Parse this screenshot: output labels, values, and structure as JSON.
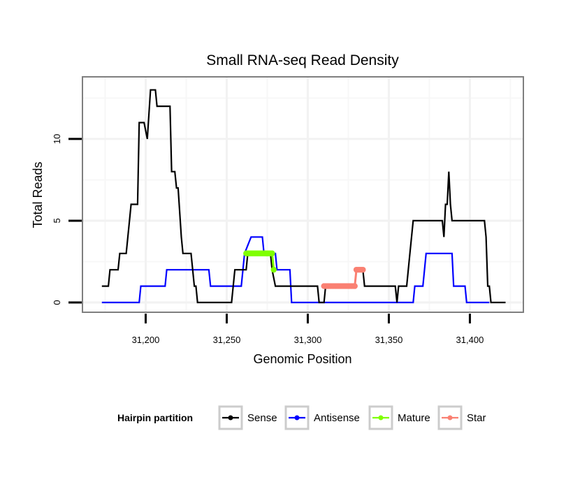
{
  "chart_data": {
    "type": "line",
    "title": "Small RNA-seq Read Density",
    "xlabel": "Genomic Position",
    "ylabel": "Total Reads",
    "xlim": [
      31161,
      31433
    ],
    "ylim": [
      -0.6,
      13.8
    ],
    "x_ticks": [
      31200,
      31250,
      31300,
      31350,
      31400
    ],
    "x_tick_labels": [
      "31,200",
      "31,250",
      "31,300",
      "31,350",
      "31,400"
    ],
    "y_ticks": [
      0,
      5,
      10
    ],
    "y_tick_labels": [
      "0",
      "5",
      "10"
    ],
    "grid": true,
    "legend": {
      "title": "Hairpin partition",
      "placement": "bottom",
      "entries": [
        {
          "name": "Sense",
          "color": "#000000"
        },
        {
          "name": "Antisense",
          "color": "#0000ff"
        },
        {
          "name": "Mature",
          "color": "#7fff00"
        },
        {
          "name": "Star",
          "color": "#fa8072"
        }
      ]
    },
    "series": [
      {
        "name": "Sense",
        "color": "#000000",
        "points": [
          [
            31173,
            1
          ],
          [
            31177,
            1
          ],
          [
            31178,
            2
          ],
          [
            31183,
            2
          ],
          [
            31184,
            3
          ],
          [
            31188,
            3
          ],
          [
            31190,
            5
          ],
          [
            31191,
            6
          ],
          [
            31195,
            6
          ],
          [
            31196,
            11
          ],
          [
            31199,
            11
          ],
          [
            31201,
            10
          ],
          [
            31203,
            13
          ],
          [
            31206,
            13
          ],
          [
            31207,
            12
          ],
          [
            31215,
            12
          ],
          [
            31216,
            8
          ],
          [
            31218,
            8
          ],
          [
            31219,
            7
          ],
          [
            31220,
            7
          ],
          [
            31222,
            4
          ],
          [
            31223,
            3
          ],
          [
            31228,
            3
          ],
          [
            31230,
            1
          ],
          [
            31231,
            1
          ],
          [
            31232,
            0
          ],
          [
            31253,
            0
          ],
          [
            31255,
            2
          ],
          [
            31262,
            2
          ],
          [
            31263,
            3
          ],
          [
            31277,
            3
          ],
          [
            31278,
            2
          ],
          [
            31280,
            1
          ],
          [
            31306,
            1
          ],
          [
            31307,
            0
          ],
          [
            31310,
            0
          ],
          [
            31311,
            1
          ],
          [
            31329,
            1
          ],
          [
            31330,
            2
          ],
          [
            31334,
            2
          ],
          [
            31335,
            1
          ],
          [
            31354,
            1
          ],
          [
            31355,
            0
          ],
          [
            31356,
            1
          ],
          [
            31361,
            1
          ],
          [
            31363,
            3
          ],
          [
            31365,
            5
          ],
          [
            31383,
            5
          ],
          [
            31384,
            4
          ],
          [
            31385,
            6
          ],
          [
            31386,
            6
          ],
          [
            31387,
            8
          ],
          [
            31388,
            6
          ],
          [
            31389,
            5
          ],
          [
            31409,
            5
          ],
          [
            31410,
            4
          ],
          [
            31411,
            1
          ],
          [
            31412,
            1
          ],
          [
            31413,
            0
          ],
          [
            31422,
            0
          ]
        ]
      },
      {
        "name": "Antisense",
        "color": "#0000ff",
        "points": [
          [
            31173,
            0
          ],
          [
            31196,
            0
          ],
          [
            31197,
            1
          ],
          [
            31212,
            1
          ],
          [
            31213,
            2
          ],
          [
            31239,
            2
          ],
          [
            31240,
            1
          ],
          [
            31259,
            1
          ],
          [
            31261,
            3
          ],
          [
            31265,
            4
          ],
          [
            31272,
            4
          ],
          [
            31273,
            3
          ],
          [
            31280,
            3
          ],
          [
            31281,
            2
          ],
          [
            31289,
            2
          ],
          [
            31290,
            0
          ],
          [
            31365,
            0
          ],
          [
            31366,
            1
          ],
          [
            31371,
            1
          ],
          [
            31373,
            3
          ],
          [
            31389,
            3
          ],
          [
            31390,
            1
          ],
          [
            31397,
            1
          ],
          [
            31398,
            0
          ],
          [
            31412,
            0
          ]
        ]
      },
      {
        "name": "Mature",
        "color": "#7fff00",
        "points": [
          [
            31262,
            3
          ],
          [
            31263,
            3
          ],
          [
            31264,
            3
          ],
          [
            31265,
            3
          ],
          [
            31266,
            3
          ],
          [
            31267,
            3
          ],
          [
            31268,
            3
          ],
          [
            31269,
            3
          ],
          [
            31270,
            3
          ],
          [
            31271,
            3
          ],
          [
            31272,
            3
          ],
          [
            31273,
            3
          ],
          [
            31274,
            3
          ],
          [
            31275,
            3
          ],
          [
            31276,
            3
          ],
          [
            31277,
            3
          ],
          [
            31278,
            3
          ],
          [
            31279,
            2
          ]
        ]
      },
      {
        "name": "Star",
        "color": "#fa8072",
        "points": [
          [
            31310,
            1
          ],
          [
            31311,
            1
          ],
          [
            31312,
            1
          ],
          [
            31313,
            1
          ],
          [
            31314,
            1
          ],
          [
            31315,
            1
          ],
          [
            31316,
            1
          ],
          [
            31317,
            1
          ],
          [
            31318,
            1
          ],
          [
            31319,
            1
          ],
          [
            31320,
            1
          ],
          [
            31321,
            1
          ],
          [
            31322,
            1
          ],
          [
            31323,
            1
          ],
          [
            31324,
            1
          ],
          [
            31325,
            1
          ],
          [
            31326,
            1
          ],
          [
            31327,
            1
          ],
          [
            31328,
            1
          ],
          [
            31329,
            1
          ],
          [
            31330,
            2
          ],
          [
            31331,
            2
          ],
          [
            31332,
            2
          ],
          [
            31333,
            2
          ],
          [
            31334,
            2
          ]
        ]
      }
    ]
  }
}
